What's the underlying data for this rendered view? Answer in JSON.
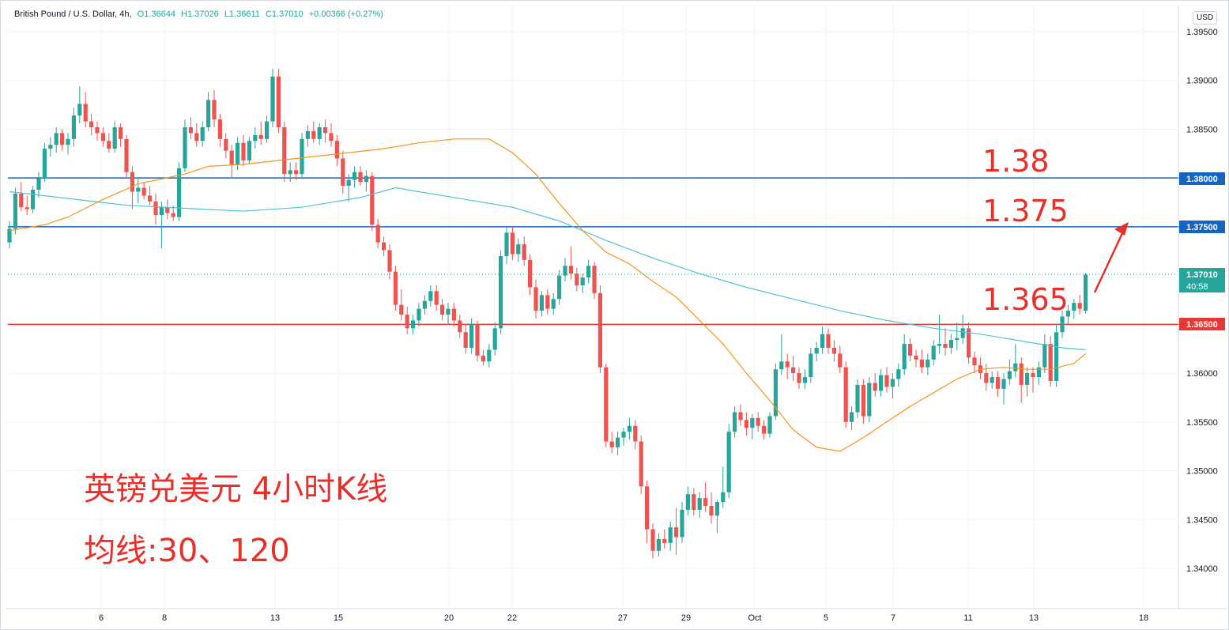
{
  "legend": {
    "symbol": "British Pound / U.S. Dollar, 4h,",
    "open": "O1.36644",
    "high": "H1.37026",
    "low": "L1.36611",
    "close": "C1.37010",
    "change": "+0.00366 (+0.27%)"
  },
  "currency": "USD",
  "annotations": {
    "level_1380": "1.38",
    "level_1375": "1.375",
    "level_1365": "1.365",
    "title": "英镑兑美元 4小时K线",
    "ma_note": "均线:30、120"
  },
  "price_tags": {
    "p1": "1.38000",
    "p2": "1.37500",
    "last": "1.37010",
    "countdown": "40:58",
    "p3": "1.36500"
  },
  "colors": {
    "up": "#26a69a",
    "down": "#ef5350",
    "ma30": "#f7941d",
    "ma120": "#4fc3d9",
    "hline_blue": "#1565c0",
    "hline_red": "#e53935",
    "annotation": "#e8302a"
  },
  "chart_data": {
    "type": "candlestick",
    "symbol": "British Pound / U.S. Dollar, 4h",
    "ylim": [
      1.3375,
      1.397
    ],
    "y_ticks": [
      "1.39500",
      "1.39000",
      "1.38500",
      "1.38000",
      "1.37500",
      "1.37010",
      "1.36500",
      "1.36000",
      "1.35500",
      "1.35000",
      "1.34500",
      "1.34000"
    ],
    "x_ticks": [
      "6",
      "8",
      "13",
      "15",
      "20",
      "22",
      "27",
      "29",
      "Oct",
      "5",
      "7",
      "11",
      "13",
      "18"
    ],
    "horizontal_lines": [
      {
        "value": 1.38,
        "color": "#1565c0"
      },
      {
        "value": 1.375,
        "color": "#1565c0"
      },
      {
        "value": 1.365,
        "color": "#e53935"
      }
    ],
    "last_price": 1.3701,
    "candles": [
      [
        1.3734,
        1.3756,
        1.3728,
        1.3748
      ],
      [
        1.3748,
        1.379,
        1.3742,
        1.3784
      ],
      [
        1.3784,
        1.3796,
        1.3766,
        1.377
      ],
      [
        1.377,
        1.3782,
        1.3762,
        1.3768
      ],
      [
        1.3768,
        1.3792,
        1.3764,
        1.3788
      ],
      [
        1.3788,
        1.3806,
        1.378,
        1.38
      ],
      [
        1.38,
        1.3836,
        1.3796,
        1.383
      ],
      [
        1.383,
        1.3842,
        1.3822,
        1.3834
      ],
      [
        1.3834,
        1.3852,
        1.3826,
        1.3846
      ],
      [
        1.3846,
        1.385,
        1.3828,
        1.3834
      ],
      [
        1.3834,
        1.3846,
        1.3824,
        1.384
      ],
      [
        1.384,
        1.3872,
        1.3832,
        1.3864
      ],
      [
        1.3864,
        1.3894,
        1.3856,
        1.3876
      ],
      [
        1.3876,
        1.3888,
        1.3852,
        1.3858
      ],
      [
        1.3858,
        1.3866,
        1.3844,
        1.3852
      ],
      [
        1.3852,
        1.3858,
        1.3838,
        1.3846
      ],
      [
        1.3846,
        1.3852,
        1.3832,
        1.3838
      ],
      [
        1.3838,
        1.3846,
        1.3826,
        1.383
      ],
      [
        1.383,
        1.3858,
        1.3826,
        1.3852
      ],
      [
        1.3852,
        1.3856,
        1.3832,
        1.384
      ],
      [
        1.384,
        1.3844,
        1.38,
        1.3806
      ],
      [
        1.3806,
        1.3812,
        1.3768,
        1.3786
      ],
      [
        1.3786,
        1.38,
        1.3774,
        1.379
      ],
      [
        1.379,
        1.3796,
        1.3778,
        1.3782
      ],
      [
        1.3782,
        1.3792,
        1.3772,
        1.3776
      ],
      [
        1.3776,
        1.3784,
        1.3752,
        1.3762
      ],
      [
        1.3762,
        1.3776,
        1.3728,
        1.377
      ],
      [
        1.377,
        1.3778,
        1.3758,
        1.3764
      ],
      [
        1.3764,
        1.3772,
        1.3756,
        1.376
      ],
      [
        1.376,
        1.3816,
        1.3756,
        1.381
      ],
      [
        1.381,
        1.386,
        1.3806,
        1.3852
      ],
      [
        1.3852,
        1.3862,
        1.384,
        1.3846
      ],
      [
        1.3846,
        1.3856,
        1.3832,
        1.3838
      ],
      [
        1.3838,
        1.3858,
        1.3832,
        1.3852
      ],
      [
        1.3852,
        1.3888,
        1.3848,
        1.388
      ],
      [
        1.388,
        1.389,
        1.3852,
        1.386
      ],
      [
        1.386,
        1.3866,
        1.3832,
        1.384
      ],
      [
        1.384,
        1.3846,
        1.382,
        1.3828
      ],
      [
        1.3828,
        1.3834,
        1.38,
        1.3814
      ],
      [
        1.3814,
        1.3842,
        1.3808,
        1.3836
      ],
      [
        1.3836,
        1.3844,
        1.3812,
        1.3818
      ],
      [
        1.3818,
        1.3842,
        1.3814,
        1.3838
      ],
      [
        1.3838,
        1.3852,
        1.383,
        1.3844
      ],
      [
        1.3844,
        1.3858,
        1.3834,
        1.384
      ],
      [
        1.384,
        1.3864,
        1.3836,
        1.3858
      ],
      [
        1.3858,
        1.3912,
        1.3852,
        1.3904
      ],
      [
        1.3904,
        1.3912,
        1.3846,
        1.3852
      ],
      [
        1.3852,
        1.3858,
        1.3796,
        1.3804
      ],
      [
        1.3804,
        1.3816,
        1.3796,
        1.3808
      ],
      [
        1.3808,
        1.3816,
        1.3798,
        1.3804
      ],
      [
        1.3804,
        1.3846,
        1.38,
        1.384
      ],
      [
        1.384,
        1.3854,
        1.3832,
        1.3848
      ],
      [
        1.3848,
        1.3858,
        1.3836,
        1.384
      ],
      [
        1.384,
        1.3856,
        1.3834,
        1.3852
      ],
      [
        1.3852,
        1.386,
        1.3836,
        1.3846
      ],
      [
        1.3846,
        1.3856,
        1.3832,
        1.3838
      ],
      [
        1.3838,
        1.3844,
        1.3812,
        1.382
      ],
      [
        1.382,
        1.3828,
        1.3784,
        1.3792
      ],
      [
        1.3792,
        1.3804,
        1.3776,
        1.3798
      ],
      [
        1.3798,
        1.3812,
        1.379,
        1.3806
      ],
      [
        1.3806,
        1.3812,
        1.3792,
        1.3796
      ],
      [
        1.3796,
        1.3808,
        1.3786,
        1.3802
      ],
      [
        1.3802,
        1.3806,
        1.3746,
        1.3752
      ],
      [
        1.3752,
        1.3758,
        1.3728,
        1.3734
      ],
      [
        1.3734,
        1.374,
        1.372,
        1.3726
      ],
      [
        1.3726,
        1.3732,
        1.3696,
        1.3704
      ],
      [
        1.3704,
        1.371,
        1.3664,
        1.367
      ],
      [
        1.367,
        1.3686,
        1.3654,
        1.366
      ],
      [
        1.366,
        1.3668,
        1.364,
        1.3646
      ],
      [
        1.3646,
        1.366,
        1.364,
        1.3654
      ],
      [
        1.3654,
        1.3672,
        1.3648,
        1.3666
      ],
      [
        1.3666,
        1.368,
        1.366,
        1.3674
      ],
      [
        1.3674,
        1.369,
        1.3668,
        1.3684
      ],
      [
        1.3684,
        1.369,
        1.3664,
        1.367
      ],
      [
        1.367,
        1.3676,
        1.3654,
        1.366
      ],
      [
        1.366,
        1.3672,
        1.365,
        1.3666
      ],
      [
        1.3666,
        1.3672,
        1.3648,
        1.3654
      ],
      [
        1.3654,
        1.366,
        1.3636,
        1.3642
      ],
      [
        1.3642,
        1.365,
        1.362,
        1.3626
      ],
      [
        1.3626,
        1.3656,
        1.362,
        1.365
      ],
      [
        1.365,
        1.3654,
        1.3612,
        1.3618
      ],
      [
        1.3618,
        1.3624,
        1.3608,
        1.3612
      ],
      [
        1.3612,
        1.363,
        1.3606,
        1.3624
      ],
      [
        1.3624,
        1.3652,
        1.3618,
        1.3646
      ],
      [
        1.3646,
        1.3726,
        1.364,
        1.372
      ],
      [
        1.372,
        1.375,
        1.3712,
        1.3744
      ],
      [
        1.3744,
        1.375,
        1.3716,
        1.3722
      ],
      [
        1.3722,
        1.3738,
        1.3714,
        1.3732
      ],
      [
        1.3732,
        1.374,
        1.371,
        1.3716
      ],
      [
        1.3716,
        1.3722,
        1.368,
        1.3688
      ],
      [
        1.3688,
        1.3696,
        1.3656,
        1.3664
      ],
      [
        1.3664,
        1.3684,
        1.3658,
        1.368
      ],
      [
        1.368,
        1.3686,
        1.366,
        1.3666
      ],
      [
        1.3666,
        1.3682,
        1.366,
        1.3676
      ],
      [
        1.3676,
        1.3706,
        1.367,
        1.37
      ],
      [
        1.37,
        1.3718,
        1.3694,
        1.371
      ],
      [
        1.371,
        1.373,
        1.3696,
        1.3702
      ],
      [
        1.3702,
        1.3708,
        1.3684,
        1.369
      ],
      [
        1.369,
        1.3702,
        1.3682,
        1.3698
      ],
      [
        1.3698,
        1.3716,
        1.3692,
        1.371
      ],
      [
        1.371,
        1.3714,
        1.3676,
        1.3682
      ],
      [
        1.3682,
        1.369,
        1.36,
        1.3606
      ],
      [
        1.3606,
        1.361,
        1.3524,
        1.353
      ],
      [
        1.353,
        1.354,
        1.3518,
        1.3524
      ],
      [
        1.3524,
        1.354,
        1.3516,
        1.3534
      ],
      [
        1.3534,
        1.3544,
        1.3526,
        1.354
      ],
      [
        1.354,
        1.3554,
        1.3532,
        1.3546
      ],
      [
        1.3546,
        1.3552,
        1.3522,
        1.353
      ],
      [
        1.353,
        1.3536,
        1.3476,
        1.3484
      ],
      [
        1.3484,
        1.349,
        1.3426,
        1.344
      ],
      [
        1.344,
        1.3446,
        1.341,
        1.3418
      ],
      [
        1.3418,
        1.3436,
        1.3412,
        1.343
      ],
      [
        1.343,
        1.344,
        1.342,
        1.3426
      ],
      [
        1.3426,
        1.3448,
        1.3418,
        1.3442
      ],
      [
        1.3442,
        1.3462,
        1.3414,
        1.3432
      ],
      [
        1.3432,
        1.3468,
        1.3426,
        1.346
      ],
      [
        1.346,
        1.3484,
        1.3454,
        1.3476
      ],
      [
        1.3476,
        1.3482,
        1.3454,
        1.346
      ],
      [
        1.346,
        1.3478,
        1.3452,
        1.3472
      ],
      [
        1.3472,
        1.3488,
        1.3458,
        1.3464
      ],
      [
        1.3464,
        1.3478,
        1.3446,
        1.3454
      ],
      [
        1.3454,
        1.347,
        1.3436,
        1.3468
      ],
      [
        1.3468,
        1.3504,
        1.3462,
        1.3478
      ],
      [
        1.3478,
        1.3548,
        1.3472,
        1.354
      ],
      [
        1.354,
        1.3566,
        1.3534,
        1.356
      ],
      [
        1.356,
        1.3568,
        1.3546,
        1.3552
      ],
      [
        1.3552,
        1.356,
        1.3536,
        1.3544
      ],
      [
        1.3544,
        1.3558,
        1.3532,
        1.3554
      ],
      [
        1.3554,
        1.356,
        1.354,
        1.3546
      ],
      [
        1.3546,
        1.3552,
        1.3532,
        1.3538
      ],
      [
        1.3538,
        1.356,
        1.3534,
        1.3556
      ],
      [
        1.3556,
        1.361,
        1.3552,
        1.3604
      ],
      [
        1.3604,
        1.364,
        1.3598,
        1.3612
      ],
      [
        1.3612,
        1.362,
        1.3594,
        1.3606
      ],
      [
        1.3606,
        1.3618,
        1.3592,
        1.36
      ],
      [
        1.36,
        1.3606,
        1.3584,
        1.359
      ],
      [
        1.359,
        1.3604,
        1.3584,
        1.3596
      ],
      [
        1.3596,
        1.3626,
        1.359,
        1.362
      ],
      [
        1.362,
        1.3632,
        1.3612,
        1.3626
      ],
      [
        1.3626,
        1.3648,
        1.362,
        1.364
      ],
      [
        1.364,
        1.3646,
        1.362,
        1.3626
      ],
      [
        1.3626,
        1.3634,
        1.3612,
        1.362
      ],
      [
        1.362,
        1.3628,
        1.36,
        1.3606
      ],
      [
        1.3606,
        1.3612,
        1.3544,
        1.355
      ],
      [
        1.355,
        1.3566,
        1.3542,
        1.356
      ],
      [
        1.356,
        1.3594,
        1.3554,
        1.3588
      ],
      [
        1.3588,
        1.3594,
        1.3548,
        1.3556
      ],
      [
        1.3556,
        1.3596,
        1.355,
        1.359
      ],
      [
        1.359,
        1.36,
        1.3576,
        1.3582
      ],
      [
        1.3582,
        1.3604,
        1.3576,
        1.3598
      ],
      [
        1.3598,
        1.3606,
        1.358,
        1.3586
      ],
      [
        1.3586,
        1.36,
        1.3574,
        1.3594
      ],
      [
        1.3594,
        1.361,
        1.3586,
        1.3604
      ],
      [
        1.3604,
        1.364,
        1.3598,
        1.363
      ],
      [
        1.363,
        1.3636,
        1.3612,
        1.3618
      ],
      [
        1.3618,
        1.3624,
        1.3606,
        1.3614
      ],
      [
        1.3614,
        1.3624,
        1.36,
        1.3606
      ],
      [
        1.3606,
        1.362,
        1.3598,
        1.3614
      ],
      [
        1.3614,
        1.3634,
        1.3608,
        1.3628
      ],
      [
        1.3628,
        1.366,
        1.362,
        1.363
      ],
      [
        1.363,
        1.3646,
        1.3618,
        1.3626
      ],
      [
        1.3626,
        1.364,
        1.362,
        1.3634
      ],
      [
        1.3634,
        1.3652,
        1.3624,
        1.3636
      ],
      [
        1.3636,
        1.366,
        1.363,
        1.3646
      ],
      [
        1.3646,
        1.3652,
        1.361,
        1.3616
      ],
      [
        1.3616,
        1.3622,
        1.36,
        1.3608
      ],
      [
        1.3608,
        1.3616,
        1.3594,
        1.36
      ],
      [
        1.36,
        1.361,
        1.3582,
        1.359
      ],
      [
        1.359,
        1.3602,
        1.3584,
        1.3596
      ],
      [
        1.3596,
        1.3602,
        1.3576,
        1.3584
      ],
      [
        1.3584,
        1.36,
        1.3568,
        1.3594
      ],
      [
        1.3594,
        1.3614,
        1.3588,
        1.3602
      ],
      [
        1.3602,
        1.363,
        1.3596,
        1.361
      ],
      [
        1.361,
        1.3616,
        1.357,
        1.3588
      ],
      [
        1.3588,
        1.3606,
        1.3576,
        1.36
      ],
      [
        1.36,
        1.3606,
        1.358,
        1.3596
      ],
      [
        1.3596,
        1.3612,
        1.3588,
        1.3606
      ],
      [
        1.3606,
        1.364,
        1.36,
        1.363
      ],
      [
        1.363,
        1.3638,
        1.3586,
        1.3592
      ],
      [
        1.3592,
        1.365,
        1.3586,
        1.3642
      ],
      [
        1.3642,
        1.3664,
        1.3636,
        1.3658
      ],
      [
        1.3658,
        1.367,
        1.365,
        1.3664
      ],
      [
        1.3664,
        1.3676,
        1.3656,
        1.3672
      ],
      [
        1.3672,
        1.368,
        1.366,
        1.3666
      ],
      [
        1.3664,
        1.3703,
        1.3661,
        1.3701
      ]
    ],
    "ma30": [
      [
        1.374,
        1.3746
      ],
      [
        6,
        1.3752
      ],
      [
        10,
        1.376
      ],
      [
        16,
        1.3778
      ],
      [
        22,
        1.3794
      ],
      [
        30,
        1.3804
      ],
      [
        34,
        1.3812
      ],
      [
        40,
        1.3814
      ],
      [
        46,
        1.3818
      ],
      [
        52,
        1.3822
      ],
      [
        58,
        1.3826
      ],
      [
        64,
        1.383
      ],
      [
        70,
        1.3836
      ],
      [
        76,
        1.384
      ],
      [
        82,
        1.384
      ],
      [
        86,
        1.3826
      ],
      [
        90,
        1.3804
      ],
      [
        94,
        1.3774
      ],
      [
        98,
        1.3746
      ],
      [
        102,
        1.3724
      ],
      [
        106,
        1.3712
      ],
      [
        110,
        1.3694
      ],
      [
        114,
        1.3678
      ],
      [
        118,
        1.3654
      ],
      [
        122,
        1.363
      ],
      [
        126,
        1.36
      ],
      [
        130,
        1.3572
      ],
      [
        134,
        1.3542
      ],
      [
        138,
        1.3524
      ],
      [
        142,
        1.352
      ],
      [
        146,
        1.3534
      ],
      [
        150,
        1.355
      ],
      [
        154,
        1.3566
      ],
      [
        158,
        1.358
      ],
      [
        162,
        1.3594
      ],
      [
        166,
        1.3604
      ],
      [
        170,
        1.3606
      ],
      [
        174,
        1.3604
      ],
      [
        178,
        1.3604
      ],
      [
        182,
        1.361
      ],
      [
        184,
        1.362
      ]
    ],
    "ma120": [
      [
        0,
        1.3786
      ],
      [
        20,
        1.3772
      ],
      [
        40,
        1.3766
      ],
      [
        50,
        1.377
      ],
      [
        60,
        1.378
      ],
      [
        66,
        1.379
      ],
      [
        70,
        1.3786
      ],
      [
        78,
        1.3778
      ],
      [
        86,
        1.377
      ],
      [
        94,
        1.3756
      ],
      [
        102,
        1.3736
      ],
      [
        110,
        1.3718
      ],
      [
        118,
        1.3702
      ],
      [
        126,
        1.3688
      ],
      [
        134,
        1.3676
      ],
      [
        142,
        1.3664
      ],
      [
        150,
        1.3654
      ],
      [
        158,
        1.3646
      ],
      [
        166,
        1.364
      ],
      [
        174,
        1.3632
      ],
      [
        180,
        1.3626
      ],
      [
        184,
        1.3624
      ]
    ]
  }
}
